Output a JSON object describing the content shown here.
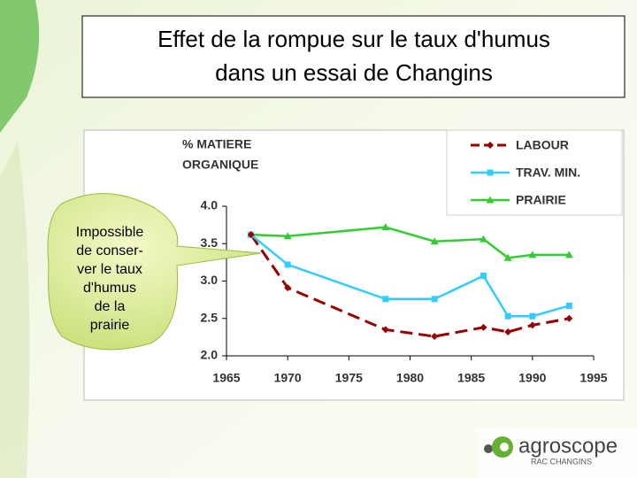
{
  "title": [
    "Effet de la rompue sur le taux d'humus",
    "dans un essai de Changins"
  ],
  "callout": [
    "Impossible",
    "de conser-",
    "ver le taux",
    "d'humus",
    "de la",
    "prairie"
  ],
  "logo": {
    "name": "agroscope",
    "subtitle": "RAC CHANGINS"
  },
  "chart_data": {
    "type": "line",
    "y_label": [
      "% MATIERE",
      "ORGANIQUE"
    ],
    "x": [
      1967,
      1970,
      1978,
      1982,
      1986,
      1988,
      1990,
      1993
    ],
    "series": [
      {
        "name": "LABOUR",
        "color": "#990000",
        "marker": "diamond",
        "dash": true,
        "values": [
          3.62,
          2.91,
          2.35,
          2.26,
          2.38,
          2.32,
          2.41,
          2.5
        ]
      },
      {
        "name": "TRAV. MIN.",
        "color": "#33ccff",
        "marker": "square",
        "dash": false,
        "values": [
          3.62,
          3.22,
          2.76,
          2.76,
          3.07,
          2.53,
          2.53,
          2.67
        ]
      },
      {
        "name": "PRAIRIE",
        "color": "#33cc33",
        "marker": "triangle",
        "dash": false,
        "values": [
          3.62,
          3.6,
          3.72,
          3.53,
          3.56,
          3.31,
          3.35,
          3.35
        ]
      }
    ],
    "xlim": [
      1965,
      1995
    ],
    "xticks": [
      1965,
      1970,
      1975,
      1980,
      1985,
      1990,
      1995
    ],
    "ylim": [
      2,
      4
    ],
    "yticks": [
      {
        "value": 2,
        "label": "2.0"
      },
      2.5,
      {
        "value": 3,
        "label": "3.0"
      },
      3.5,
      {
        "value": 4,
        "label": "4.0"
      }
    ],
    "grid": false,
    "legend": "upper right"
  }
}
